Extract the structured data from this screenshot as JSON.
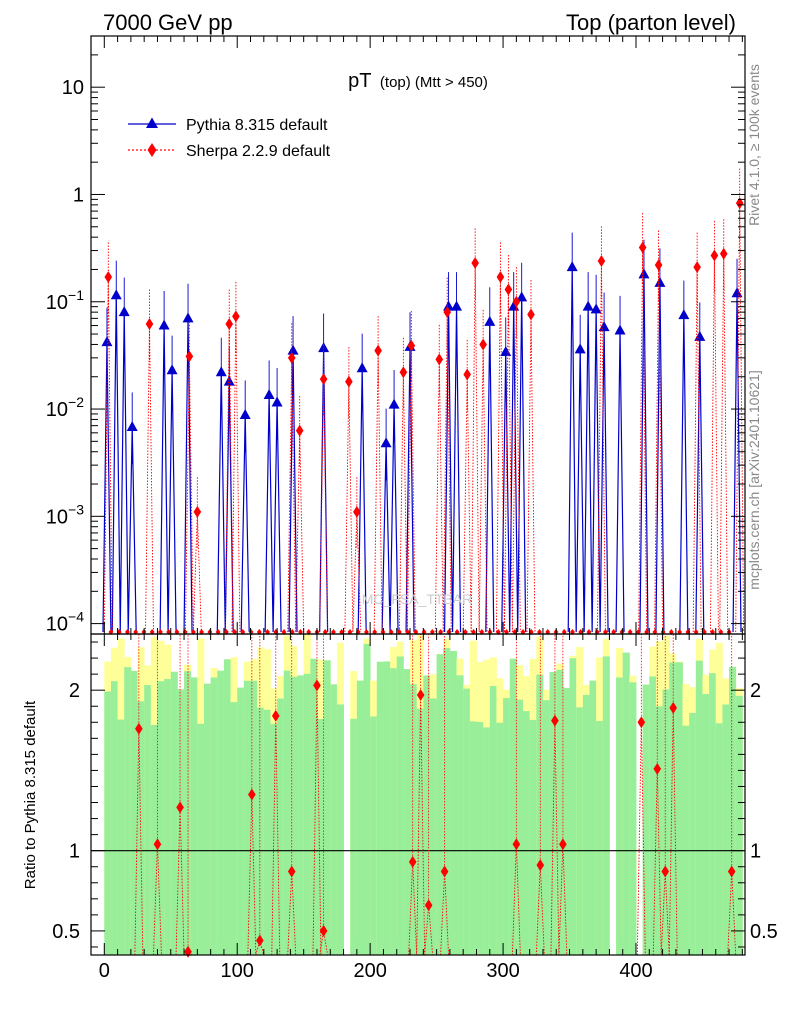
{
  "header": {
    "left": "7000 GeV pp",
    "right": "Top (parton level)"
  },
  "side": {
    "rivet": "Rivet 4.1.0, ≥ 100k events",
    "mcplots": "mcplots.cern.ch [arXiv:2401.10621]"
  },
  "watermark": "MC_FSA_TTBAR",
  "chart_data": {
    "type": "line",
    "title": "pT (top) (Mtt > 450)",
    "title_main": "pT",
    "title_sub": "(top) (Mtt > 450)",
    "xlabel": "",
    "ylabel": "",
    "ratio_ylabel": "Ratio to Pythia 8.315 default",
    "xlim": [
      -10,
      482
    ],
    "ylim": [
      8e-05,
      30
    ],
    "yscale": "log",
    "ratio_ylim": [
      0.35,
      2.35
    ],
    "x_ticks": [
      0,
      100,
      200,
      300,
      400
    ],
    "x_tick_labels": [
      "0",
      "100",
      "200",
      "300",
      "400"
    ],
    "y_ticks": [
      0.0001,
      0.001,
      0.01,
      0.1,
      1,
      10
    ],
    "y_tick_labels": [
      {
        "b": "10",
        "e": "−4"
      },
      {
        "b": "10",
        "e": "−3"
      },
      {
        "b": "10",
        "e": "−2"
      },
      {
        "b": "10",
        "e": "−1"
      },
      {
        "b": "1",
        "e": ""
      },
      {
        "b": "10",
        "e": ""
      }
    ],
    "ratio_y_ticks": [
      0.5,
      1,
      2
    ],
    "ratio_y_tick_labels": [
      "0.5",
      "1",
      "2"
    ],
    "legend": [
      {
        "name": "Pythia 8.315 default",
        "color": "#0000cc",
        "marker": "triangle",
        "style": "solid"
      },
      {
        "name": "Sherpa 2.2.9 default",
        "color": "#ff0000",
        "marker": "diamond",
        "style": "dotted"
      }
    ],
    "series": [
      {
        "name": "Pythia 8.315 default",
        "color": "#0000cc",
        "points": [
          [
            2,
            0.042
          ],
          [
            9,
            0.115
          ],
          [
            15,
            0.08
          ],
          [
            21,
            0.0068
          ],
          [
            45,
            0.06
          ],
          [
            51,
            0.023
          ],
          [
            63,
            0.07
          ],
          [
            88,
            0.022
          ],
          [
            94,
            0.018
          ],
          [
            106,
            0.0088
          ],
          [
            124,
            0.0135
          ],
          [
            130,
            0.0115
          ],
          [
            142,
            0.035
          ],
          [
            165,
            0.037
          ],
          [
            194,
            0.024
          ],
          [
            212,
            0.0048
          ],
          [
            218,
            0.011
          ],
          [
            230,
            0.038
          ],
          [
            259,
            0.09
          ],
          [
            265,
            0.09
          ],
          [
            290,
            0.065
          ],
          [
            302,
            0.034
          ],
          [
            308,
            0.09
          ],
          [
            314,
            0.11
          ],
          [
            352,
            0.21
          ],
          [
            358,
            0.036
          ],
          [
            364,
            0.09
          ],
          [
            370,
            0.085
          ],
          [
            376,
            0.058
          ],
          [
            388,
            0.054
          ],
          [
            406,
            0.18
          ],
          [
            418,
            0.15
          ],
          [
            436,
            0.075
          ],
          [
            448,
            0.047
          ],
          [
            476,
            0.12
          ]
        ]
      },
      {
        "name": "Sherpa 2.2.9 default",
        "color": "#ff0000",
        "points": [
          [
            3,
            0.17
          ],
          [
            34,
            0.062
          ],
          [
            64,
            0.031
          ],
          [
            70,
            0.0011
          ],
          [
            94,
            0.062
          ],
          [
            99,
            0.073
          ],
          [
            141,
            0.03
          ],
          [
            147,
            0.0063
          ],
          [
            165,
            0.019
          ],
          [
            184,
            0.018
          ],
          [
            190,
            0.0011
          ],
          [
            206,
            0.035
          ],
          [
            225,
            0.022
          ],
          [
            231,
            0.039
          ],
          [
            252,
            0.029
          ],
          [
            258,
            0.08
          ],
          [
            273,
            0.021
          ],
          [
            279,
            0.23
          ],
          [
            285,
            0.04
          ],
          [
            298,
            0.17
          ],
          [
            304,
            0.13
          ],
          [
            310,
            0.1
          ],
          [
            321,
            0.076
          ],
          [
            374,
            0.24
          ],
          [
            405,
            0.32
          ],
          [
            417,
            0.22
          ],
          [
            446,
            0.21
          ],
          [
            459,
            0.27
          ],
          [
            466,
            0.28
          ],
          [
            478,
            0.83
          ]
        ]
      }
    ],
    "ratio_points": [
      [
        26,
        1.76
      ],
      [
        40,
        1.04
      ],
      [
        57,
        1.27
      ],
      [
        63,
        0.37
      ],
      [
        111,
        1.35
      ],
      [
        117,
        0.44
      ],
      [
        129,
        1.84
      ],
      [
        141,
        0.87
      ],
      [
        160,
        2.03
      ],
      [
        165,
        0.5
      ],
      [
        232,
        0.93
      ],
      [
        238,
        1.97
      ],
      [
        244,
        0.66
      ],
      [
        256,
        0.87
      ],
      [
        310,
        1.04
      ],
      [
        328,
        0.91
      ],
      [
        339,
        1.81
      ],
      [
        345,
        1.04
      ],
      [
        404,
        1.8
      ],
      [
        416,
        1.51
      ],
      [
        422,
        0.87
      ],
      [
        428,
        1.89
      ],
      [
        472,
        0.87
      ]
    ]
  }
}
